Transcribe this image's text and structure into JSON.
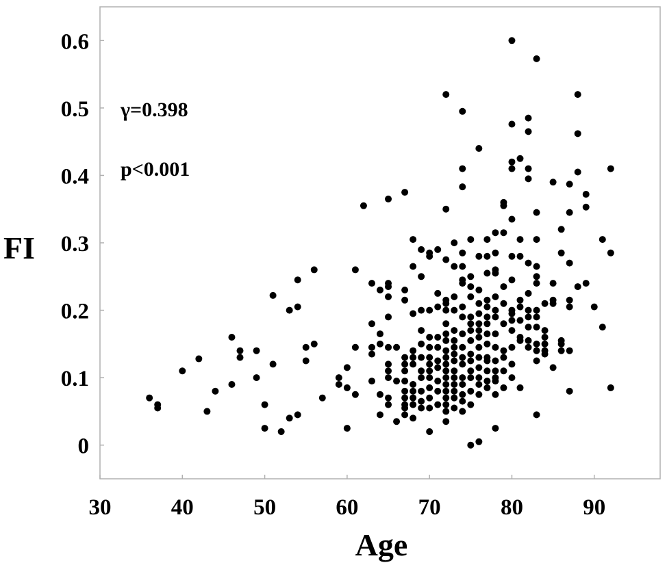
{
  "chart_data": {
    "type": "scatter",
    "xlabel": "Age",
    "ylabel": "FI",
    "xlim": [
      30,
      98
    ],
    "ylim": [
      -0.05,
      0.65
    ],
    "xticks": [
      30,
      40,
      50,
      60,
      70,
      80,
      90
    ],
    "yticks": [
      0,
      0.1,
      0.2,
      0.3,
      0.4,
      0.5,
      0.6
    ],
    "xtick_labels": [
      "30",
      "40",
      "50",
      "60",
      "70",
      "80",
      "90"
    ],
    "ytick_labels": [
      "0",
      "0.1",
      "0.2",
      "0.3",
      "0.4",
      "0.5",
      "0.6"
    ],
    "grid": false,
    "marker_color": "#000000",
    "annotations": [
      "γ=0.398",
      "p<0.001"
    ],
    "points": [
      [
        36,
        0.07
      ],
      [
        37,
        0.06
      ],
      [
        37,
        0.055
      ],
      [
        40,
        0.11
      ],
      [
        42,
        0.128
      ],
      [
        43,
        0.05
      ],
      [
        44,
        0.08
      ],
      [
        46,
        0.16
      ],
      [
        46,
        0.09
      ],
      [
        47,
        0.14
      ],
      [
        47,
        0.13
      ],
      [
        49,
        0.14
      ],
      [
        49,
        0.1
      ],
      [
        50,
        0.06
      ],
      [
        50,
        0.025
      ],
      [
        51,
        0.222
      ],
      [
        51,
        0.12
      ],
      [
        52,
        0.02
      ],
      [
        53,
        0.2
      ],
      [
        53,
        0.04
      ],
      [
        54,
        0.245
      ],
      [
        54,
        0.205
      ],
      [
        54,
        0.045
      ],
      [
        55,
        0.145
      ],
      [
        55,
        0.125
      ],
      [
        56,
        0.26
      ],
      [
        56,
        0.15
      ],
      [
        57,
        0.07
      ],
      [
        59,
        0.1
      ],
      [
        59,
        0.09
      ],
      [
        60,
        0.115
      ],
      [
        60,
        0.085
      ],
      [
        60,
        0.025
      ],
      [
        61,
        0.26
      ],
      [
        61,
        0.145
      ],
      [
        61,
        0.075
      ],
      [
        62,
        0.355
      ],
      [
        63,
        0.24
      ],
      [
        63,
        0.18
      ],
      [
        63,
        0.145
      ],
      [
        63,
        0.135
      ],
      [
        63,
        0.095
      ],
      [
        64,
        0.23
      ],
      [
        64,
        0.165
      ],
      [
        64,
        0.15
      ],
      [
        64,
        0.075
      ],
      [
        64,
        0.045
      ],
      [
        65,
        0.365
      ],
      [
        65,
        0.24
      ],
      [
        65,
        0.235
      ],
      [
        65,
        0.22
      ],
      [
        65,
        0.19
      ],
      [
        65,
        0.145
      ],
      [
        65,
        0.12
      ],
      [
        65,
        0.11
      ],
      [
        65,
        0.1
      ],
      [
        65,
        0.07
      ],
      [
        65,
        0.06
      ],
      [
        66,
        0.145
      ],
      [
        66,
        0.095
      ],
      [
        66,
        0.035
      ],
      [
        67,
        0.375
      ],
      [
        67,
        0.23
      ],
      [
        67,
        0.215
      ],
      [
        67,
        0.13
      ],
      [
        67,
        0.12
      ],
      [
        67,
        0.11
      ],
      [
        67,
        0.095
      ],
      [
        67,
        0.08
      ],
      [
        67,
        0.07
      ],
      [
        67,
        0.06
      ],
      [
        67,
        0.055
      ],
      [
        67,
        0.045
      ],
      [
        68,
        0.305
      ],
      [
        68,
        0.265
      ],
      [
        68,
        0.195
      ],
      [
        68,
        0.14
      ],
      [
        68,
        0.13
      ],
      [
        68,
        0.12
      ],
      [
        68,
        0.09
      ],
      [
        68,
        0.08
      ],
      [
        68,
        0.07
      ],
      [
        68,
        0.06
      ],
      [
        68,
        0.04
      ],
      [
        69,
        0.29
      ],
      [
        69,
        0.25
      ],
      [
        69,
        0.2
      ],
      [
        69,
        0.17
      ],
      [
        69,
        0.15
      ],
      [
        69,
        0.13
      ],
      [
        69,
        0.11
      ],
      [
        69,
        0.1
      ],
      [
        69,
        0.08
      ],
      [
        69,
        0.065
      ],
      [
        69,
        0.055
      ],
      [
        70,
        0.285
      ],
      [
        70,
        0.28
      ],
      [
        70,
        0.2
      ],
      [
        70,
        0.16
      ],
      [
        70,
        0.145
      ],
      [
        70,
        0.13
      ],
      [
        70,
        0.12
      ],
      [
        70,
        0.11
      ],
      [
        70,
        0.1
      ],
      [
        70,
        0.085
      ],
      [
        70,
        0.07
      ],
      [
        70,
        0.055
      ],
      [
        70,
        0.02
      ],
      [
        71,
        0.29
      ],
      [
        71,
        0.225
      ],
      [
        71,
        0.205
      ],
      [
        71,
        0.16
      ],
      [
        71,
        0.145
      ],
      [
        71,
        0.125
      ],
      [
        71,
        0.115
      ],
      [
        71,
        0.095
      ],
      [
        71,
        0.08
      ],
      [
        71,
        0.06
      ],
      [
        72,
        0.52
      ],
      [
        72,
        0.35
      ],
      [
        72,
        0.275
      ],
      [
        72,
        0.215
      ],
      [
        72,
        0.21
      ],
      [
        72,
        0.2
      ],
      [
        72,
        0.18
      ],
      [
        72,
        0.165
      ],
      [
        72,
        0.155
      ],
      [
        72,
        0.14
      ],
      [
        72,
        0.13
      ],
      [
        72,
        0.12
      ],
      [
        72,
        0.11
      ],
      [
        72,
        0.1
      ],
      [
        72,
        0.09
      ],
      [
        72,
        0.08
      ],
      [
        72,
        0.07
      ],
      [
        72,
        0.06
      ],
      [
        72,
        0.05
      ],
      [
        72,
        0.035
      ],
      [
        73,
        0.3
      ],
      [
        73,
        0.265
      ],
      [
        73,
        0.22
      ],
      [
        73,
        0.2
      ],
      [
        73,
        0.17
      ],
      [
        73,
        0.155
      ],
      [
        73,
        0.145
      ],
      [
        73,
        0.135
      ],
      [
        73,
        0.125
      ],
      [
        73,
        0.11
      ],
      [
        73,
        0.1
      ],
      [
        73,
        0.09
      ],
      [
        73,
        0.08
      ],
      [
        73,
        0.07
      ],
      [
        73,
        0.055
      ],
      [
        74,
        0.495
      ],
      [
        74,
        0.41
      ],
      [
        74,
        0.383
      ],
      [
        74,
        0.285
      ],
      [
        74,
        0.265
      ],
      [
        74,
        0.245
      ],
      [
        74,
        0.24
      ],
      [
        74,
        0.205
      ],
      [
        74,
        0.19
      ],
      [
        74,
        0.165
      ],
      [
        74,
        0.145
      ],
      [
        74,
        0.13
      ],
      [
        74,
        0.12
      ],
      [
        74,
        0.1
      ],
      [
        74,
        0.09
      ],
      [
        74,
        0.075
      ],
      [
        74,
        0.065
      ],
      [
        74,
        0.05
      ],
      [
        75,
        0.305
      ],
      [
        75,
        0.25
      ],
      [
        75,
        0.235
      ],
      [
        75,
        0.22
      ],
      [
        75,
        0.19
      ],
      [
        75,
        0.18
      ],
      [
        75,
        0.17
      ],
      [
        75,
        0.155
      ],
      [
        75,
        0.135
      ],
      [
        75,
        0.125
      ],
      [
        75,
        0.11
      ],
      [
        75,
        0.1
      ],
      [
        75,
        0.08
      ],
      [
        75,
        0.06
      ],
      [
        75,
        0.0
      ],
      [
        76,
        0.44
      ],
      [
        76,
        0.28
      ],
      [
        76,
        0.23
      ],
      [
        76,
        0.21
      ],
      [
        76,
        0.195
      ],
      [
        76,
        0.18
      ],
      [
        76,
        0.17
      ],
      [
        76,
        0.16
      ],
      [
        76,
        0.145
      ],
      [
        76,
        0.13
      ],
      [
        76,
        0.115
      ],
      [
        76,
        0.1
      ],
      [
        76,
        0.09
      ],
      [
        76,
        0.075
      ],
      [
        76,
        0.005
      ],
      [
        77,
        0.305
      ],
      [
        77,
        0.28
      ],
      [
        77,
        0.255
      ],
      [
        77,
        0.215
      ],
      [
        77,
        0.205
      ],
      [
        77,
        0.19
      ],
      [
        77,
        0.18
      ],
      [
        77,
        0.165
      ],
      [
        77,
        0.15
      ],
      [
        77,
        0.13
      ],
      [
        77,
        0.125
      ],
      [
        77,
        0.11
      ],
      [
        77,
        0.095
      ],
      [
        77,
        0.085
      ],
      [
        78,
        0.315
      ],
      [
        78,
        0.285
      ],
      [
        78,
        0.26
      ],
      [
        78,
        0.255
      ],
      [
        78,
        0.22
      ],
      [
        78,
        0.2
      ],
      [
        78,
        0.19
      ],
      [
        78,
        0.165
      ],
      [
        78,
        0.145
      ],
      [
        78,
        0.125
      ],
      [
        78,
        0.11
      ],
      [
        78,
        0.1
      ],
      [
        78,
        0.095
      ],
      [
        78,
        0.075
      ],
      [
        78,
        0.025
      ],
      [
        79,
        0.36
      ],
      [
        79,
        0.355
      ],
      [
        79,
        0.315
      ],
      [
        79,
        0.235
      ],
      [
        79,
        0.21
      ],
      [
        79,
        0.18
      ],
      [
        79,
        0.14
      ],
      [
        79,
        0.13
      ],
      [
        79,
        0.11
      ],
      [
        79,
        0.085
      ],
      [
        80,
        0.6
      ],
      [
        80,
        0.476
      ],
      [
        80,
        0.42
      ],
      [
        80,
        0.41
      ],
      [
        80,
        0.335
      ],
      [
        80,
        0.28
      ],
      [
        80,
        0.245
      ],
      [
        80,
        0.2
      ],
      [
        80,
        0.195
      ],
      [
        80,
        0.185
      ],
      [
        80,
        0.17
      ],
      [
        80,
        0.145
      ],
      [
        80,
        0.12
      ],
      [
        80,
        0.1
      ],
      [
        81,
        0.425
      ],
      [
        81,
        0.305
      ],
      [
        81,
        0.28
      ],
      [
        81,
        0.215
      ],
      [
        81,
        0.205
      ],
      [
        81,
        0.185
      ],
      [
        81,
        0.16
      ],
      [
        81,
        0.155
      ],
      [
        81,
        0.085
      ],
      [
        82,
        0.485
      ],
      [
        82,
        0.465
      ],
      [
        82,
        0.41
      ],
      [
        82,
        0.395
      ],
      [
        82,
        0.27
      ],
      [
        82,
        0.225
      ],
      [
        82,
        0.2
      ],
      [
        82,
        0.19
      ],
      [
        82,
        0.175
      ],
      [
        82,
        0.155
      ],
      [
        82,
        0.145
      ],
      [
        83,
        0.573
      ],
      [
        83,
        0.345
      ],
      [
        83,
        0.305
      ],
      [
        83,
        0.265
      ],
      [
        83,
        0.25
      ],
      [
        83,
        0.24
      ],
      [
        83,
        0.2
      ],
      [
        83,
        0.19
      ],
      [
        83,
        0.175
      ],
      [
        83,
        0.15
      ],
      [
        83,
        0.14
      ],
      [
        83,
        0.125
      ],
      [
        83,
        0.045
      ],
      [
        84,
        0.21
      ],
      [
        84,
        0.17
      ],
      [
        84,
        0.16
      ],
      [
        84,
        0.15
      ],
      [
        84,
        0.14
      ],
      [
        84,
        0.135
      ],
      [
        85,
        0.39
      ],
      [
        85,
        0.24
      ],
      [
        85,
        0.215
      ],
      [
        85,
        0.21
      ],
      [
        85,
        0.115
      ],
      [
        86,
        0.32
      ],
      [
        86,
        0.285
      ],
      [
        86,
        0.155
      ],
      [
        86,
        0.15
      ],
      [
        86,
        0.14
      ],
      [
        87,
        0.387
      ],
      [
        87,
        0.345
      ],
      [
        87,
        0.27
      ],
      [
        87,
        0.215
      ],
      [
        87,
        0.205
      ],
      [
        87,
        0.14
      ],
      [
        87,
        0.08
      ],
      [
        88,
        0.52
      ],
      [
        88,
        0.462
      ],
      [
        88,
        0.405
      ],
      [
        88,
        0.235
      ],
      [
        89,
        0.372
      ],
      [
        89,
        0.353
      ],
      [
        89,
        0.24
      ],
      [
        90,
        0.205
      ],
      [
        91,
        0.305
      ],
      [
        91,
        0.175
      ],
      [
        92,
        0.41
      ],
      [
        92,
        0.285
      ],
      [
        92,
        0.085
      ]
    ]
  }
}
